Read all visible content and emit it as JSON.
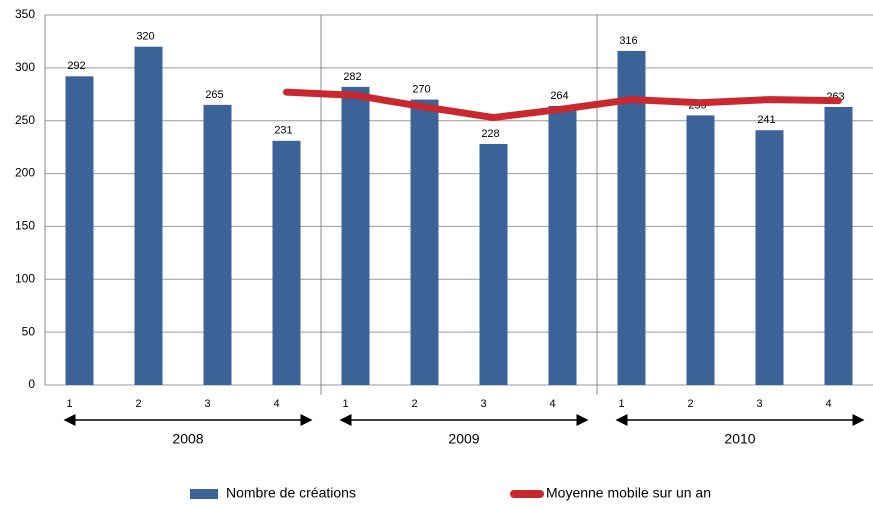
{
  "chart_data": {
    "type": "bar",
    "categories": [
      "1",
      "2",
      "3",
      "4",
      "1",
      "2",
      "3",
      "4",
      "1",
      "2",
      "3",
      "4"
    ],
    "groups": [
      "2008",
      "2009",
      "2010"
    ],
    "series": [
      {
        "name": "Nombre de créations",
        "type": "bar",
        "color": "#3b6397",
        "values": [
          292,
          320,
          265,
          231,
          282,
          270,
          228,
          264,
          316,
          255,
          241,
          263
        ]
      },
      {
        "name": "Moyenne mobile sur un an",
        "type": "line",
        "color": "#c8282e",
        "values": [
          null,
          null,
          null,
          277,
          274,
          263,
          253,
          261,
          270,
          267,
          270,
          269
        ]
      }
    ],
    "ylim": [
      0,
      350
    ],
    "yticks": [
      0,
      50,
      100,
      150,
      200,
      250,
      300,
      350
    ],
    "grid": true,
    "legend": "bottom"
  }
}
